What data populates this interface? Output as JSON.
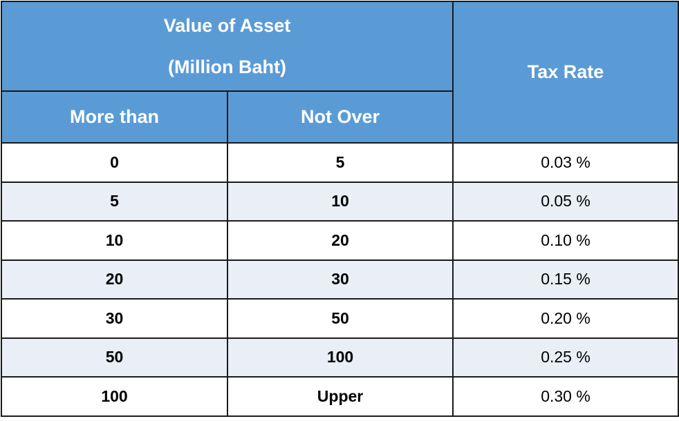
{
  "header": {
    "group_line1": "Value of Asset",
    "group_line2": "(Million Baht)",
    "col_more_than": "More than",
    "col_not_over": "Not Over",
    "col_tax_rate": "Tax Rate"
  },
  "rows": [
    {
      "more_than": "0",
      "not_over": "5",
      "tax_rate": "0.03 %"
    },
    {
      "more_than": "5",
      "not_over": "10",
      "tax_rate": "0.05 %"
    },
    {
      "more_than": "10",
      "not_over": "20",
      "tax_rate": "0.10 %"
    },
    {
      "more_than": "20",
      "not_over": "30",
      "tax_rate": "0.15 %"
    },
    {
      "more_than": "30",
      "not_over": "50",
      "tax_rate": "0.20 %"
    },
    {
      "more_than": "50",
      "not_over": "100",
      "tax_rate": "0.25 %"
    },
    {
      "more_than": "100",
      "not_over": "Upper",
      "tax_rate": "0.30 %"
    }
  ],
  "colors": {
    "header_bg": "#5b9bd5",
    "header_text": "#ffffff",
    "row_alt_bg": "#e9eef7",
    "border": "#1a1a1a"
  }
}
